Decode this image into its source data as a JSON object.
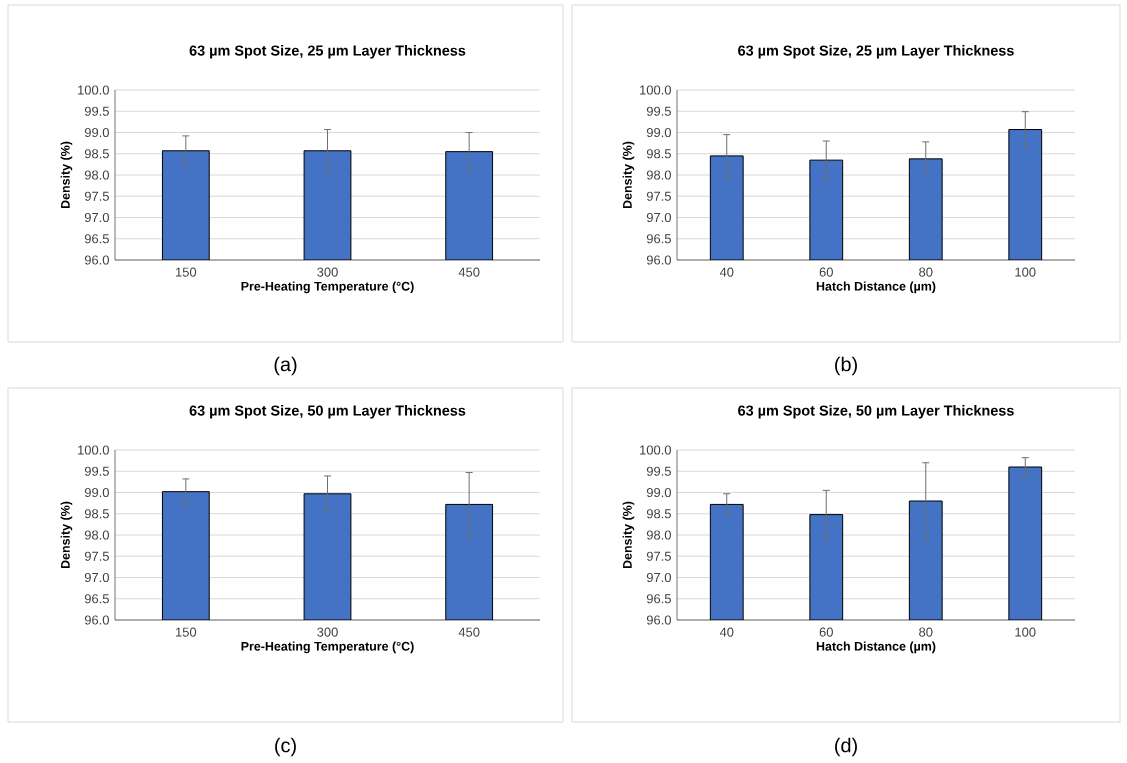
{
  "chart_data": [
    {
      "type": "bar",
      "title": "63 µm Spot Size, 25 µm Layer Thickness",
      "xlabel": "Pre-Heating Temperature (°C)",
      "ylabel": "Density (%)",
      "categories": [
        "150",
        "300",
        "450"
      ],
      "values": [
        98.57,
        98.57,
        98.55
      ],
      "errors": [
        0.35,
        0.5,
        0.45
      ],
      "color": "#4472c4",
      "ylim": [
        96,
        100
      ],
      "yticks": [
        {
          "value": 96,
          "label": "96.0"
        },
        {
          "value": 96.5,
          "label": "96.5"
        },
        {
          "value": 97,
          "label": "97.0"
        },
        {
          "value": 97.5,
          "label": "97.5"
        },
        {
          "value": 98,
          "label": "98.0"
        },
        {
          "value": 98.5,
          "label": "98.5"
        },
        {
          "value": 99,
          "label": "99.0"
        },
        {
          "value": 99.5,
          "label": "99.5"
        },
        {
          "value": 100,
          "label": "100.0"
        }
      ],
      "grid": "y",
      "annotations": [
        "(a)"
      ]
    },
    {
      "type": "bar",
      "title": "63 µm Spot Size, 25 µm Layer Thickness",
      "xlabel": "Hatch Distance (µm)",
      "ylabel": "Density (%)",
      "categories": [
        "40",
        "60",
        "80",
        "100"
      ],
      "values": [
        98.45,
        98.35,
        98.38,
        99.07
      ],
      "errors": [
        0.5,
        0.45,
        0.4,
        0.42
      ],
      "color": "#4472c4",
      "ylim": [
        96,
        100
      ],
      "yticks": [
        {
          "value": 96,
          "label": "96.0"
        },
        {
          "value": 96.5,
          "label": "96.5"
        },
        {
          "value": 97,
          "label": "97.0"
        },
        {
          "value": 97.5,
          "label": "97.5"
        },
        {
          "value": 98,
          "label": "98.0"
        },
        {
          "value": 98.5,
          "label": "98.5"
        },
        {
          "value": 99,
          "label": "99.0"
        },
        {
          "value": 99.5,
          "label": "99.5"
        },
        {
          "value": 100,
          "label": "100.0"
        }
      ],
      "grid": "y",
      "annotations": [
        "(b)"
      ]
    },
    {
      "type": "bar",
      "title": "63 µm Spot Size, 50 µm Layer Thickness",
      "xlabel": "Pre-Heating Temperature (°C)",
      "ylabel": "Density (%)",
      "categories": [
        "150",
        "300",
        "450"
      ],
      "values": [
        99.02,
        98.97,
        98.72
      ],
      "errors": [
        0.3,
        0.42,
        0.75
      ],
      "color": "#4472c4",
      "ylim": [
        96,
        100
      ],
      "yticks": [
        {
          "value": 96,
          "label": "96.0"
        },
        {
          "value": 96.5,
          "label": "96.5"
        },
        {
          "value": 97,
          "label": "97.0"
        },
        {
          "value": 97.5,
          "label": "97.5"
        },
        {
          "value": 98,
          "label": "98.0"
        },
        {
          "value": 98.5,
          "label": "98.5"
        },
        {
          "value": 99,
          "label": "99.0"
        },
        {
          "value": 99.5,
          "label": "99.5"
        },
        {
          "value": 100,
          "label": "100.0"
        }
      ],
      "grid": "y",
      "annotations": [
        "(c)"
      ]
    },
    {
      "type": "bar",
      "title": "63 µm Spot Size, 50 µm Layer Thickness",
      "xlabel": "Hatch Distance (µm)",
      "ylabel": "Density (%)",
      "categories": [
        "40",
        "60",
        "80",
        "100"
      ],
      "values": [
        98.72,
        98.48,
        98.8,
        99.6
      ],
      "errors": [
        0.25,
        0.57,
        0.9,
        0.22
      ],
      "color": "#4472c4",
      "ylim": [
        96,
        100
      ],
      "yticks": [
        {
          "value": 96,
          "label": "96.0"
        },
        {
          "value": 96.5,
          "label": "96.5"
        },
        {
          "value": 97,
          "label": "97.0"
        },
        {
          "value": 97.5,
          "label": "97.5"
        },
        {
          "value": 98,
          "label": "98.0"
        },
        {
          "value": 98.5,
          "label": "98.5"
        },
        {
          "value": 99,
          "label": "99.0"
        },
        {
          "value": 99.5,
          "label": "99.5"
        },
        {
          "value": 100,
          "label": "100.0"
        }
      ],
      "grid": "y",
      "annotations": [
        "(d)"
      ]
    }
  ]
}
